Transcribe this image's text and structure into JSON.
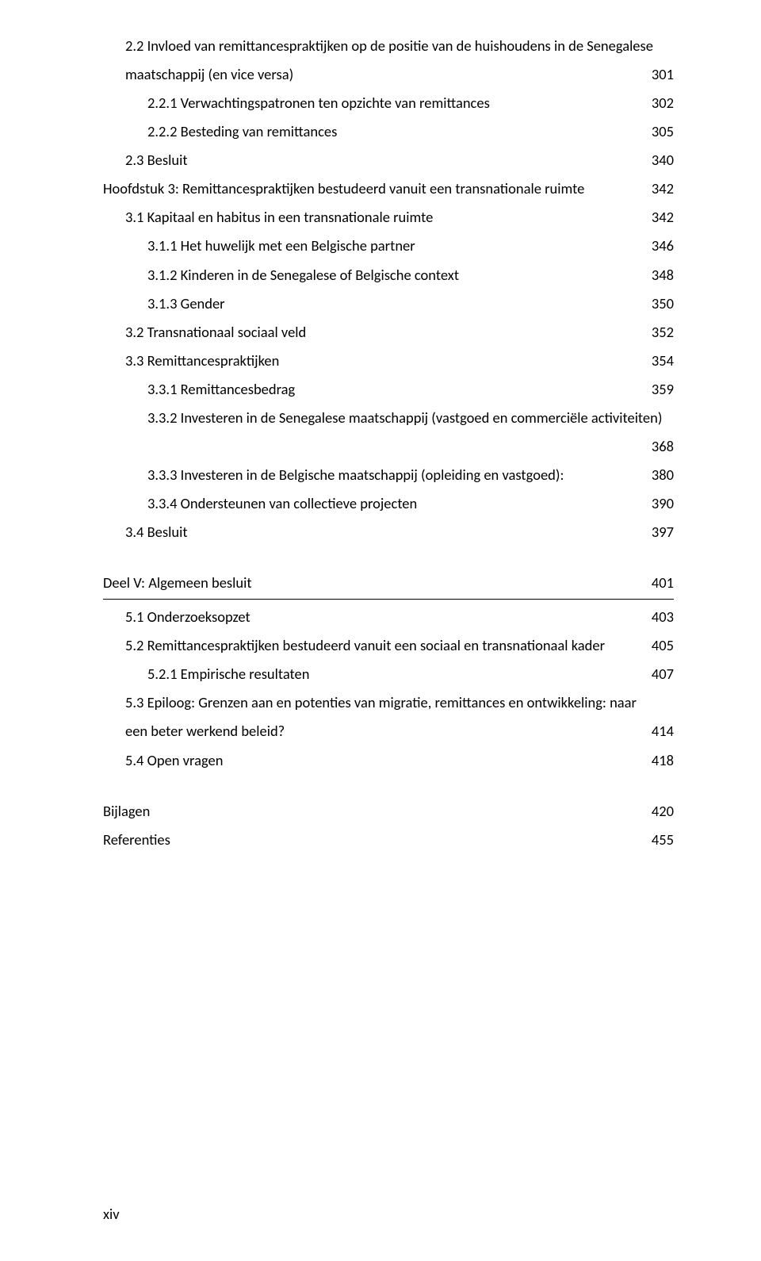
{
  "toc": {
    "block1": [
      {
        "label": "2.2 Invloed van remittancespraktijken op de positie van de huishoudens in de Senegalese",
        "page": "",
        "indent": 1,
        "nopage": true
      },
      {
        "label": "maatschappij (en vice versa)",
        "page": "301",
        "indent": 1
      },
      {
        "label": "2.2.1 Verwachtingspatronen ten opzichte van remittances",
        "page": "302",
        "indent": 2
      },
      {
        "label": "2.2.2 Besteding van remittances",
        "page": "305",
        "indent": 2
      },
      {
        "label": "2.3 Besluit",
        "page": "340",
        "indent": 1
      },
      {
        "label": "Hoofdstuk 3: Remittancespraktijken bestudeerd vanuit een transnationale ruimte",
        "page": "342",
        "indent": 0
      },
      {
        "label": "3.1 Kapitaal en habitus in een transnationale ruimte",
        "page": "342",
        "indent": 1
      },
      {
        "label": "3.1.1 Het huwelijk met een Belgische partner",
        "page": "346",
        "indent": 2
      },
      {
        "label": "3.1.2 Kinderen in de Senegalese of Belgische context",
        "page": "348",
        "indent": 2
      },
      {
        "label": "3.1.3 Gender",
        "page": "350",
        "indent": 2
      },
      {
        "label": "3.2 Transnationaal sociaal veld",
        "page": "352",
        "indent": 1
      },
      {
        "label": "3.3 Remittancespraktijken",
        "page": "354",
        "indent": 1
      },
      {
        "label": "3.3.1 Remittancesbedrag",
        "page": "359",
        "indent": 2
      },
      {
        "label": "3.3.2 Investeren in de Senegalese maatschappij (vastgoed en commerciële activiteiten)",
        "page": "",
        "indent": 2,
        "nopage": true
      },
      {
        "label": "",
        "page": "368",
        "indent": 2,
        "pageonly": true
      },
      {
        "label": "3.3.3 Investeren in de Belgische maatschappij (opleiding en vastgoed):",
        "page": "380",
        "indent": 2
      },
      {
        "label": "3.3.4 Ondersteunen van collectieve projecten",
        "page": "390",
        "indent": 2
      },
      {
        "label": "3.4 Besluit",
        "page": "397",
        "indent": 1
      }
    ],
    "part5": {
      "label": "Deel V: Algemeen besluit",
      "page": "401"
    },
    "block2": [
      {
        "label": "5.1 Onderzoeksopzet",
        "page": "403",
        "indent": 1
      },
      {
        "label": "5.2 Remittancespraktijken bestudeerd vanuit een sociaal en transnationaal kader",
        "page": "405",
        "indent": 1
      },
      {
        "label": "5.2.1 Empirische resultaten",
        "page": "407",
        "indent": 2
      },
      {
        "label": "5.3 Epiloog: Grenzen aan en potenties van migratie, remittances en ontwikkeling: naar",
        "page": "",
        "indent": 1,
        "nopage": true,
        "justify": true
      },
      {
        "label": "een beter werkend beleid?",
        "page": "414",
        "indent": 1
      },
      {
        "label": "5.4 Open vragen",
        "page": "418",
        "indent": 1
      }
    ],
    "block3": [
      {
        "label": "Bijlagen",
        "page": "420",
        "indent": 0
      },
      {
        "label": "Referenties",
        "page": "455",
        "indent": 0
      }
    ]
  },
  "footer": "xiv"
}
